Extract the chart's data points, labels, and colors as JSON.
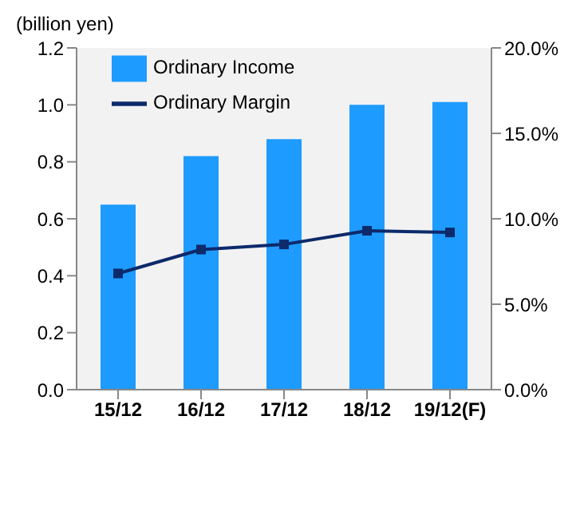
{
  "chart_data": {
    "type": "bar",
    "ylabel": "(billion yen)",
    "categories": [
      "15/12",
      "16/12",
      "17/12",
      "18/12",
      "19/12(F)"
    ],
    "series": [
      {
        "name": "Ordinary Income",
        "color": "#1e9bff",
        "values": [
          0.65,
          0.82,
          0.88,
          1.0,
          1.01
        ]
      },
      {
        "name": "Ordinary Margin",
        "type": "line",
        "axis": "y2",
        "color": "#0d2a6b",
        "values": [
          6.8,
          8.2,
          8.5,
          9.3,
          9.2
        ]
      }
    ],
    "ylim": [
      0,
      1.2
    ],
    "yticks": [
      {
        "value": 0,
        "label": "0.0"
      },
      {
        "value": 0.2,
        "label": "0.2"
      },
      {
        "value": 0.4,
        "label": "0.4"
      },
      {
        "value": 0.6,
        "label": "0.6"
      },
      {
        "value": 0.8,
        "label": "0.8"
      },
      {
        "value": 1.0,
        "label": "1.0"
      },
      {
        "value": 1.2,
        "label": "1.2"
      }
    ],
    "y2lim": [
      0,
      20
    ],
    "y2ticks": [
      {
        "value": 0,
        "label": "0.0%"
      },
      {
        "value": 5,
        "label": "5.0%"
      },
      {
        "value": 10,
        "label": "10.0%"
      },
      {
        "value": 15,
        "label": "15.0%"
      },
      {
        "value": 20,
        "label": "20.0%"
      }
    ],
    "grid": false,
    "legend": "top left",
    "marker": "square",
    "line_style": "solid"
  }
}
